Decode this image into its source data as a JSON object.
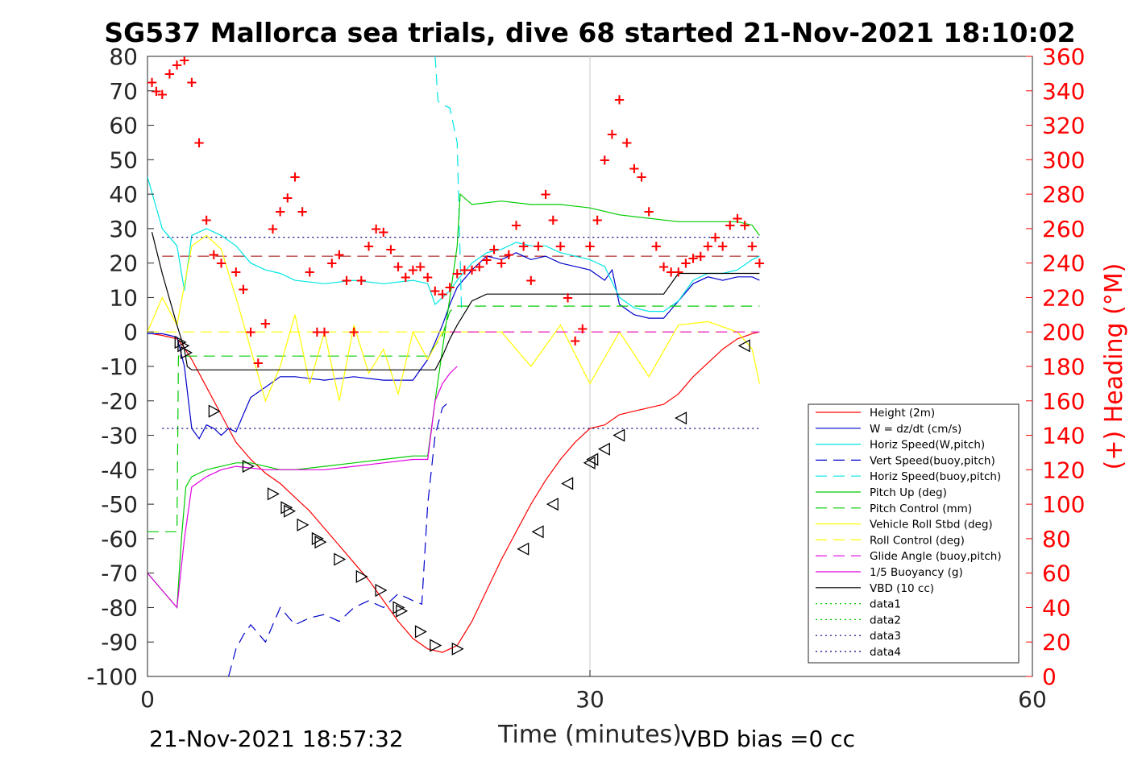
{
  "chart_data": {
    "type": "line",
    "title": "SG537 Mallorca sea trials, dive 68 started 21-Nov-2021 18:10:02",
    "xlabel": "Time (minutes)",
    "ylabel_right": "(+) Heading (°M)",
    "xlim": [
      0,
      60
    ],
    "ylim_left": [
      -100,
      80
    ],
    "ylim_right": [
      0,
      360
    ],
    "x_ticks": [
      0,
      30,
      60
    ],
    "y_ticks_left": [
      80,
      70,
      60,
      50,
      40,
      30,
      20,
      10,
      0,
      -10,
      -20,
      -30,
      -40,
      -50,
      -60,
      -70,
      -80,
      -90,
      -100
    ],
    "y_ticks_right": [
      360,
      340,
      320,
      300,
      280,
      260,
      240,
      220,
      200,
      180,
      160,
      140,
      120,
      100,
      80,
      60,
      40,
      20,
      0
    ],
    "grid": "x-only",
    "legend_position": "bottom-right",
    "footer_left": "21-Nov-2021 18:57:32",
    "footer_right": "VBD bias =0 cc",
    "colors": {
      "height": "#ff0000",
      "w": "#0000cc",
      "horiz_speed": "#00e5e5",
      "pitch": "#00cc00",
      "roll": "#ffff00",
      "glide": "#e100e1",
      "vbd": "#000000",
      "heading": "#ff0000",
      "ref_dark_red": "#a00000",
      "ref_navy": "#000080"
    },
    "series": [
      {
        "name": "Height (2m)",
        "color": "#ff0000",
        "dash": "solid",
        "x": [
          0.3,
          1,
          2,
          2.4,
          3,
          4,
          5,
          6,
          7,
          8,
          9,
          10,
          11,
          12,
          13,
          14,
          15,
          16,
          17,
          18,
          19,
          20,
          20.5,
          21,
          22,
          23,
          24,
          25,
          26,
          27,
          28,
          29,
          30,
          31,
          32,
          33,
          34,
          35,
          36,
          37,
          38,
          39,
          40,
          41,
          41.5
        ],
        "y": [
          -0.5,
          -1,
          -2,
          -4,
          -8,
          -16,
          -24,
          -32,
          -37,
          -41,
          -44,
          -48,
          -52,
          -57,
          -62,
          -67,
          -72,
          -78,
          -84,
          -89,
          -92,
          -93,
          -92,
          -91,
          -84,
          -75,
          -66,
          -58,
          -50,
          -43,
          -37,
          -32,
          -28,
          -27,
          -24,
          -23,
          -22,
          -21,
          -18,
          -13,
          -9,
          -5,
          -2,
          -0.5,
          0
        ]
      },
      {
        "name": "W = dz/dt (cm/s)",
        "color": "#0000cc",
        "dash": "solid",
        "x": [
          0,
          1,
          1.5,
          2,
          2.5,
          3,
          3.5,
          4,
          4.5,
          5,
          5.5,
          6,
          6.5,
          7,
          8,
          9,
          10,
          12,
          14,
          16,
          18,
          19,
          19.5,
          20,
          20.5,
          21,
          22,
          23,
          24,
          25,
          26,
          27,
          28,
          29,
          30,
          31,
          31.5,
          32,
          33,
          34,
          35,
          36,
          37,
          38,
          39,
          40,
          41,
          41.5
        ],
        "y": [
          -0.5,
          -0.5,
          -1,
          -1.5,
          -10,
          -28,
          -31,
          -27,
          -28,
          -30,
          -28,
          -29,
          -24,
          -19,
          -16,
          -13,
          -13,
          -14,
          -13,
          -14,
          -14,
          -8,
          -3,
          2,
          8,
          13,
          18,
          22,
          21,
          23,
          21,
          22,
          20,
          19,
          18,
          15,
          18,
          8,
          5,
          4,
          4,
          9,
          14,
          16,
          15,
          16,
          16,
          15
        ]
      },
      {
        "name": "Horiz Speed(W,pitch)",
        "color": "#00e5e5",
        "dash": "solid",
        "x": [
          0,
          1,
          2,
          2.5,
          3,
          4,
          5,
          6,
          7,
          8,
          9,
          10,
          12,
          14,
          16,
          18,
          19,
          19.5,
          20,
          20.5,
          21,
          22,
          23,
          24,
          25,
          26,
          27,
          28,
          29,
          30,
          31,
          32,
          33,
          34,
          35,
          36,
          37,
          38,
          39,
          40,
          41,
          41.5
        ],
        "y": [
          45,
          30,
          25,
          12,
          28,
          30,
          28,
          25,
          20,
          18,
          17,
          15,
          14,
          15,
          14,
          15,
          14,
          8,
          10,
          12,
          15,
          20,
          23,
          24,
          26,
          25,
          25,
          23,
          22,
          21,
          19,
          10,
          7,
          6,
          6,
          9,
          15,
          17,
          17,
          18,
          21,
          22
        ]
      },
      {
        "name": "Vert Speed(buoy,pitch)",
        "color": "#0000cc",
        "dash": "dashed",
        "x": [
          5.5,
          6,
          6.5,
          7,
          8,
          9,
          10,
          11,
          12,
          13,
          14,
          15,
          16,
          17,
          18,
          18.6,
          19,
          19.5,
          20,
          20.5
        ],
        "y": [
          -100,
          -92,
          -88,
          -85,
          -90,
          -80,
          -85,
          -83,
          -82,
          -84,
          -80,
          -78,
          -80,
          -76,
          -78,
          -79,
          -50,
          -30,
          -22,
          -20
        ]
      },
      {
        "name": "Horiz Speed(buoy,pitch)",
        "color": "#00e5e5",
        "dash": "dashed",
        "x": [
          19.5,
          19.7,
          20,
          20.5,
          21,
          21.3
        ],
        "y": [
          80,
          67,
          66,
          65,
          55,
          5
        ]
      },
      {
        "name": "Pitch Up (deg)",
        "color": "#00cc00",
        "dash": "solid",
        "x": [
          0,
          1,
          2,
          2.3,
          2.6,
          3,
          4,
          5,
          6,
          7,
          8,
          9,
          10,
          12,
          14,
          16,
          18,
          19,
          19.5,
          20,
          20.5,
          21,
          21.2,
          22,
          24,
          26,
          28,
          30,
          32,
          34,
          36,
          38,
          40,
          41,
          41.5
        ],
        "y": [
          -70,
          -75,
          -80,
          -60,
          -45,
          -42,
          -40,
          -39,
          -38,
          -38,
          -39,
          -40,
          -40,
          -39,
          -38,
          -37,
          -36,
          -36,
          -20,
          -5,
          10,
          25,
          40,
          37,
          38,
          37,
          37,
          36,
          34,
          33,
          32,
          32,
          32,
          31,
          28
        ]
      },
      {
        "name": "Pitch Control (mm)",
        "color": "#00cc00",
        "dash": "dashed",
        "x": [
          0,
          2,
          2.1,
          3,
          19,
          20,
          20.5,
          21,
          41.5
        ],
        "y": [
          -58,
          -58,
          -7,
          -7,
          -7,
          -1,
          6,
          7.5,
          7.5
        ]
      },
      {
        "name": "Vehicle Roll Stbd (deg)",
        "color": "#ffff00",
        "dash": "solid",
        "x": [
          0,
          1,
          2,
          3,
          4,
          5,
          6,
          7,
          8,
          9,
          10,
          11,
          12,
          13,
          14,
          15,
          16,
          17,
          18,
          19,
          20,
          21,
          22,
          24,
          26,
          28,
          30,
          32,
          34,
          36,
          38,
          40,
          41,
          41.5
        ],
        "y": [
          0,
          10,
          2,
          25,
          28,
          24,
          10,
          -5,
          -20,
          -10,
          5,
          -15,
          0,
          -20,
          2,
          -12,
          -5,
          -18,
          0,
          -8,
          0,
          0,
          0,
          0,
          -10,
          2,
          -15,
          0,
          -13,
          2,
          3,
          0,
          -5,
          -15
        ]
      },
      {
        "name": "Roll Control (deg)",
        "color": "#ffff00",
        "dash": "dashed",
        "x": [
          0,
          41.5
        ],
        "y": [
          0,
          0
        ]
      },
      {
        "name": "Glide Angle (buoy,pitch)",
        "color": "#e100e1",
        "dash": "dashed",
        "x": [
          20.5,
          41.5
        ],
        "y": [
          0,
          0
        ]
      },
      {
        "name": "1/5 Buoyancy (g)",
        "color": "#e100e1",
        "dash": "solid",
        "x": [
          0,
          1,
          2,
          2.5,
          3,
          4,
          5,
          6,
          8,
          10,
          12,
          14,
          16,
          18,
          19,
          19.5,
          20,
          20.5,
          21
        ],
        "y": [
          -70,
          -75,
          -80,
          -60,
          -45,
          -42,
          -40,
          -39,
          -40,
          -40,
          -40,
          -39,
          -38,
          -37,
          -37,
          -20,
          -15,
          -12,
          -10
        ]
      },
      {
        "name": "VBD (10 cc)",
        "color": "#000000",
        "dash": "solid",
        "x": [
          0.3,
          1,
          2,
          2.5,
          2.7,
          3,
          19.5,
          20,
          20.5,
          21,
          22,
          23,
          24,
          25,
          35,
          36,
          41.5
        ],
        "y": [
          29,
          17,
          2,
          -5,
          -10,
          -11,
          -11,
          -7,
          -2,
          2,
          9,
          11,
          11,
          11,
          11,
          17,
          17
        ]
      },
      {
        "name": "data1",
        "color": "#00cc00",
        "dash": "dotted",
        "x": [],
        "y": []
      },
      {
        "name": "data2",
        "color": "#00cc00",
        "dash": "dotted",
        "x": [],
        "y": []
      },
      {
        "name": "data3",
        "color": "#000080",
        "dash": "dotted",
        "x": [
          1,
          41.5
        ],
        "y": [
          27.5,
          27.5
        ]
      },
      {
        "name": "data4",
        "color": "#000080",
        "dash": "dotted",
        "x": [
          1,
          41.5
        ],
        "y": [
          -28,
          -28
        ]
      }
    ],
    "reference_line": {
      "color": "#a00000",
      "dash": "dashed",
      "x": [
        1,
        41.5
      ],
      "y": 22
    },
    "heading": {
      "axis": "right",
      "marker": "+",
      "color": "#ff0000",
      "x": [
        0.3,
        0.6,
        1,
        1.5,
        2,
        2.5,
        3,
        3.5,
        4,
        4.5,
        5,
        6,
        6.5,
        7,
        7.5,
        8,
        8.5,
        9,
        9.5,
        10,
        10.5,
        11,
        11.5,
        12,
        12.5,
        13,
        13.5,
        14,
        14.5,
        15,
        15.5,
        16,
        16.5,
        17,
        17.5,
        18,
        18.5,
        19,
        19.5,
        20,
        20.5,
        21,
        21.5,
        22,
        22.5,
        23,
        23.5,
        24,
        24.5,
        25,
        25.5,
        26,
        26.5,
        27,
        27.5,
        28,
        28.5,
        29,
        29.5,
        30,
        30.5,
        31,
        31.5,
        32,
        32.5,
        33,
        33.5,
        34,
        34.5,
        35,
        35.5,
        36,
        36.5,
        37,
        37.5,
        38,
        38.5,
        39,
        39.5,
        40,
        40.5,
        41,
        41.5
      ],
      "y": [
        345,
        340,
        338,
        350,
        355,
        358,
        345,
        310,
        265,
        245,
        240,
        235,
        225,
        200,
        182,
        205,
        260,
        270,
        278,
        290,
        270,
        235,
        200,
        200,
        240,
        245,
        230,
        200,
        230,
        250,
        260,
        258,
        248,
        238,
        232,
        236,
        238,
        232,
        224,
        222,
        226,
        234,
        236,
        236,
        238,
        242,
        248,
        240,
        245,
        262,
        250,
        230,
        250,
        280,
        265,
        250,
        220,
        195,
        202,
        250,
        265,
        300,
        315,
        335,
        310,
        295,
        290,
        270,
        250,
        238,
        235,
        235,
        240,
        243,
        244,
        250,
        255,
        250,
        262,
        266,
        262,
        250,
        240
      ]
    },
    "glide_markers": {
      "color": "#000000",
      "down": [
        [
          2.2,
          -3
        ],
        [
          2.4,
          -4
        ],
        [
          2.6,
          -6
        ],
        [
          4.5,
          -23
        ],
        [
          6.8,
          -39
        ],
        [
          8.5,
          -47
        ],
        [
          9.4,
          -51
        ],
        [
          9.6,
          -52
        ],
        [
          10.5,
          -56
        ],
        [
          11.5,
          -60
        ],
        [
          11.7,
          -61
        ],
        [
          13,
          -66
        ],
        [
          14.5,
          -71
        ],
        [
          15.8,
          -75
        ],
        [
          17,
          -80
        ],
        [
          17.2,
          -81
        ],
        [
          18.5,
          -87
        ],
        [
          19.5,
          -91
        ],
        [
          21,
          -92
        ]
      ],
      "up": [
        [
          25.5,
          -63
        ],
        [
          26.5,
          -58
        ],
        [
          27.5,
          -50
        ],
        [
          28.5,
          -44
        ],
        [
          30,
          -38
        ],
        [
          30.2,
          -37
        ],
        [
          31,
          -34
        ],
        [
          32,
          -30
        ],
        [
          36.2,
          -25
        ],
        [
          40.5,
          -4
        ]
      ]
    }
  }
}
